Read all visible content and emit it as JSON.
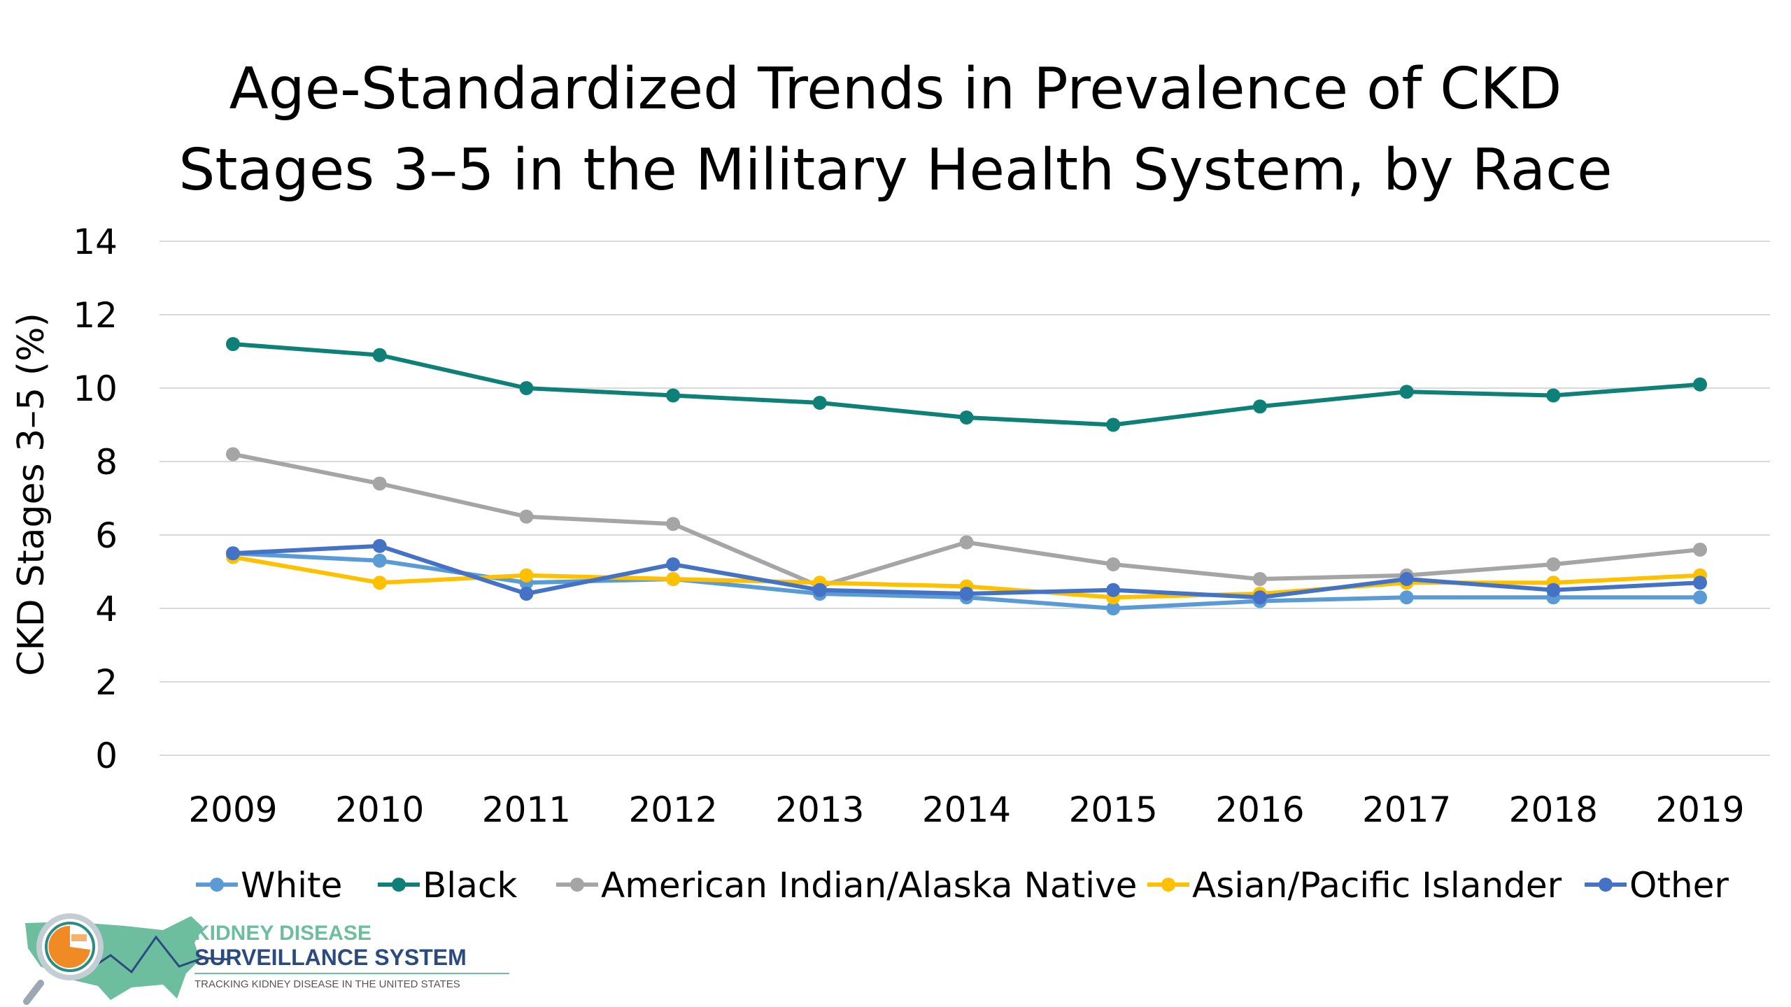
{
  "title_lines": [
    "Age-Standardized Trends in Prevalence of CKD",
    "Stages 3–5 in the Military Health System, by Race"
  ],
  "chart_data": {
    "type": "line",
    "title": "Age-Standardized Trends in Prevalence of CKD Stages 3–5 in the Military Health System, by Race",
    "xlabel": "",
    "ylabel": "CKD Stages 3–5 (%)",
    "ylim": [
      0,
      14
    ],
    "yticks": [
      0,
      2,
      4,
      6,
      8,
      10,
      12,
      14
    ],
    "grid": true,
    "legend_position": "bottom",
    "categories": [
      "2009",
      "2010",
      "2011",
      "2012",
      "2013",
      "2014",
      "2015",
      "2016",
      "2017",
      "2018",
      "2019"
    ],
    "series": [
      {
        "name": "White",
        "color": "#5B9BD5",
        "values": [
          5.5,
          5.3,
          4.7,
          4.8,
          4.4,
          4.3,
          4.0,
          4.2,
          4.3,
          4.3,
          4.3
        ]
      },
      {
        "name": "Black",
        "color": "#0E8078",
        "values": [
          11.2,
          10.9,
          10.0,
          9.8,
          9.6,
          9.2,
          9.0,
          9.5,
          9.9,
          9.8,
          10.1
        ]
      },
      {
        "name": "American Indian/Alaska Native",
        "color": "#A5A5A5",
        "values": [
          8.2,
          7.4,
          6.5,
          6.3,
          4.6,
          5.8,
          5.2,
          4.8,
          4.9,
          5.2,
          5.6
        ]
      },
      {
        "name": "Asian/Pacific Islander",
        "color": "#FFC000",
        "values": [
          5.4,
          4.7,
          4.9,
          4.8,
          4.7,
          4.6,
          4.3,
          4.4,
          4.7,
          4.7,
          4.9
        ]
      },
      {
        "name": "Other",
        "color": "#4472C4",
        "values": [
          5.5,
          5.7,
          4.4,
          5.2,
          4.5,
          4.4,
          4.5,
          4.3,
          4.8,
          4.5,
          4.7
        ]
      }
    ]
  },
  "logo": {
    "line1": "KIDNEY DISEASE",
    "line2": "SURVEILLANCE SYSTEM",
    "tagline": "TRACKING KIDNEY DISEASE IN THE UNITED STATES",
    "colors": {
      "green": "#6DBE9F",
      "navy": "#2B4A7E",
      "orange": "#F08A24",
      "teal": "#2E8B84"
    }
  }
}
